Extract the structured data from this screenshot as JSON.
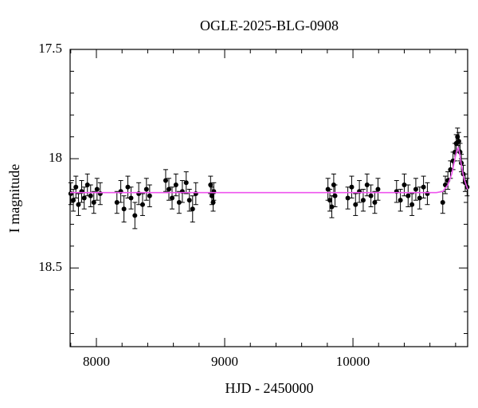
{
  "chart_data": {
    "type": "scatter",
    "title": "OGLE-2025-BLG-0908",
    "x_label": "HJD - 2450000",
    "y_label": "I magnitude",
    "xlim": [
      7795,
      10894
    ],
    "ylim": [
      17.5,
      18.86
    ],
    "y_inverted": true,
    "xticks": [
      8000,
      9000,
      10000
    ],
    "yticks": [
      17.5,
      18,
      18.5
    ],
    "xminorticks": [
      7800,
      8200,
      8400,
      8600,
      8800,
      9200,
      9400,
      9600,
      9800,
      10200,
      10400,
      10600,
      10800
    ],
    "yminorticks": [
      17.6,
      17.7,
      17.8,
      17.9,
      18.1,
      18.2,
      18.3,
      18.4,
      18.6,
      18.7,
      18.8
    ],
    "points": {
      "color": "#000000",
      "x": [
        7800,
        7820,
        7840,
        7860,
        7885,
        7905,
        7930,
        7955,
        7980,
        8005,
        8030,
        8160,
        8190,
        8215,
        8245,
        8270,
        8300,
        8330,
        8360,
        8390,
        8415,
        8540,
        8565,
        8590,
        8620,
        8645,
        8670,
        8700,
        8725,
        8750,
        8775,
        8890,
        8900,
        8910,
        8915,
        9805,
        9820,
        9835,
        9850,
        9860,
        9960,
        9990,
        10020,
        10050,
        10080,
        10110,
        10140,
        10170,
        10195,
        10340,
        10370,
        10400,
        10430,
        10460,
        10490,
        10520,
        10550,
        10580,
        10700,
        10720,
        10740,
        10760,
        10780,
        10795,
        10805,
        10815,
        10825,
        10835,
        10845,
        10860,
        10875,
        10890
      ],
      "values": [
        18.16,
        18.19,
        18.13,
        18.21,
        18.15,
        18.18,
        18.12,
        18.17,
        18.2,
        18.14,
        18.16,
        18.2,
        18.15,
        18.23,
        18.13,
        18.18,
        18.26,
        18.16,
        18.21,
        18.14,
        18.17,
        18.1,
        18.14,
        18.18,
        18.12,
        18.2,
        18.15,
        18.11,
        18.19,
        18.23,
        18.16,
        18.12,
        18.17,
        18.2,
        18.15,
        18.14,
        18.19,
        18.22,
        18.12,
        18.17,
        18.18,
        18.13,
        18.21,
        18.15,
        18.19,
        18.12,
        18.17,
        18.2,
        18.14,
        18.15,
        18.19,
        18.12,
        18.17,
        18.21,
        18.14,
        18.18,
        18.13,
        18.16,
        18.2,
        18.12,
        18.1,
        18.05,
        18.01,
        17.97,
        17.93,
        17.9,
        17.92,
        17.97,
        18.02,
        18.07,
        18.11,
        18.13
      ],
      "errors": [
        0.05,
        0.05,
        0.05,
        0.05,
        0.05,
        0.05,
        0.05,
        0.05,
        0.05,
        0.05,
        0.05,
        0.05,
        0.05,
        0.06,
        0.05,
        0.05,
        0.06,
        0.05,
        0.05,
        0.05,
        0.05,
        0.05,
        0.05,
        0.05,
        0.05,
        0.05,
        0.05,
        0.05,
        0.05,
        0.06,
        0.05,
        0.04,
        0.04,
        0.04,
        0.04,
        0.05,
        0.05,
        0.05,
        0.05,
        0.05,
        0.05,
        0.05,
        0.05,
        0.05,
        0.05,
        0.05,
        0.05,
        0.05,
        0.05,
        0.05,
        0.05,
        0.05,
        0.05,
        0.05,
        0.05,
        0.05,
        0.05,
        0.05,
        0.05,
        0.04,
        0.04,
        0.04,
        0.04,
        0.04,
        0.04,
        0.04,
        0.04,
        0.04,
        0.04,
        0.04,
        0.04,
        0.04
      ]
    },
    "model": {
      "color": "#ee55ee",
      "x": [
        7795,
        10650,
        10700,
        10740,
        10770,
        10795,
        10810,
        10820,
        10830,
        10845,
        10865,
        10894
      ],
      "values": [
        18.155,
        18.155,
        18.15,
        18.12,
        18.07,
        18.0,
        17.96,
        17.95,
        17.97,
        18.03,
        18.09,
        18.14
      ]
    }
  }
}
